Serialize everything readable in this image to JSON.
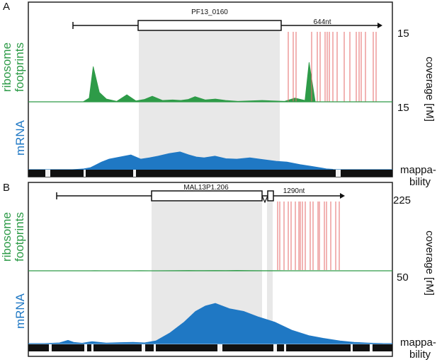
{
  "colors": {
    "ribosome": "#2e9b48",
    "mrna": "#1f78c4",
    "shading": "#e8e8e8",
    "red_lines": "#e56a6a",
    "frame": "#222222",
    "mappability_track": "#111111"
  },
  "shared": {
    "axis_title": "coverage [rM]",
    "mappability_label_1": "mappa-",
    "mappability_label_2": "bility"
  },
  "panels": {
    "a": {
      "label": "A",
      "gene_name": "PF13_0160",
      "utr_label": "644nt",
      "ribosome_label_1": "ribosome",
      "ribosome_label_2": "footprints",
      "mrna_label": "mRNA",
      "ribosome_scale": "15",
      "mrna_scale": "15"
    },
    "b": {
      "label": "B",
      "gene_name": "MAL13P1.206",
      "utr_label": "1290nt",
      "ribosome_label_1": "ribosome",
      "ribosome_label_2": "footprints",
      "mrna_label": "mRNA",
      "ribosome_scale": "225",
      "mrna_scale": "50"
    }
  },
  "chart_data": [
    {
      "type": "area",
      "panel": "A",
      "gene": "PF13_0160",
      "utr_length_label": "644nt",
      "series": [
        {
          "name": "ribosome footprints",
          "x": [
            0,
            12,
            18,
            22,
            28,
            35,
            45,
            55,
            64,
            72,
            80,
            90,
            100,
            108,
            115,
            122,
            132,
            142,
            152,
            164,
            176,
            188,
            198,
            210,
            220,
            230,
            234,
            240
          ],
          "values": [
            0,
            0,
            0.8,
            7.5,
            2.0,
            0.6,
            0.1,
            1.5,
            0.2,
            0.5,
            1.2,
            0.3,
            0.4,
            0.3,
            0.5,
            1.1,
            0.4,
            0.6,
            0.3,
            0.1,
            0.2,
            0.3,
            0.2,
            0.1,
            0.8,
            0.3,
            8.4,
            0.1
          ],
          "ylim": [
            0,
            15
          ]
        },
        {
          "name": "mRNA",
          "x": [
            0,
            12,
            18,
            22,
            28,
            35,
            45,
            55,
            64,
            72,
            80,
            90,
            100,
            108,
            115,
            122,
            132,
            142,
            152,
            164,
            176,
            188,
            198,
            210,
            220,
            230,
            234,
            240
          ],
          "values": [
            0,
            0.2,
            0.5,
            1.0,
            1.8,
            2.5,
            3.0,
            3.5,
            2.5,
            2.8,
            3.2,
            3.8,
            4.2,
            3.5,
            3.0,
            2.8,
            3.2,
            2.6,
            2.5,
            2.8,
            2.4,
            2.0,
            1.8,
            1.2,
            0.8,
            0.4,
            0.2,
            0.1
          ],
          "ylim": [
            0,
            15
          ]
        }
      ]
    },
    {
      "type": "area",
      "panel": "B",
      "gene": "MAL13P1.206",
      "utr_length_label": "1290nt",
      "series": [
        {
          "name": "ribosome footprints",
          "x": [
            0,
            12,
            18,
            22,
            28,
            35,
            45,
            55,
            64,
            72,
            80,
            90,
            100,
            108,
            115,
            122,
            132,
            142,
            152,
            164,
            176,
            188,
            198,
            210,
            220,
            230,
            234,
            240
          ],
          "values": [
            0,
            0,
            0.2,
            0.4,
            0.2,
            0.3,
            0.3,
            0.2,
            0.4,
            0.2,
            0.3,
            0.5,
            0.7,
            1.2,
            0.8,
            1.0,
            1.3,
            0.9,
            1.5,
            0.8,
            0.5,
            0.4,
            0.3,
            0.2,
            0.1,
            0.1,
            0.0,
            0.0
          ],
          "ylim": [
            0,
            225
          ]
        },
        {
          "name": "mRNA",
          "x": [
            0,
            12,
            18,
            22,
            28,
            35,
            45,
            55,
            64,
            72,
            80,
            90,
            100,
            108,
            115,
            122,
            132,
            142,
            152,
            164,
            176,
            188,
            198,
            210,
            220,
            230,
            234,
            240
          ],
          "values": [
            0,
            0.6,
            2.5,
            1.0,
            0.3,
            1.5,
            0.5,
            0.8,
            1.0,
            0.6,
            2.0,
            8.0,
            16.0,
            24.0,
            28.0,
            30.0,
            26.0,
            24.0,
            20.0,
            16.0,
            10.0,
            6.0,
            4.0,
            2.0,
            1.0,
            0.5,
            0.3,
            0.1
          ],
          "ylim": [
            0,
            50
          ]
        }
      ]
    }
  ]
}
